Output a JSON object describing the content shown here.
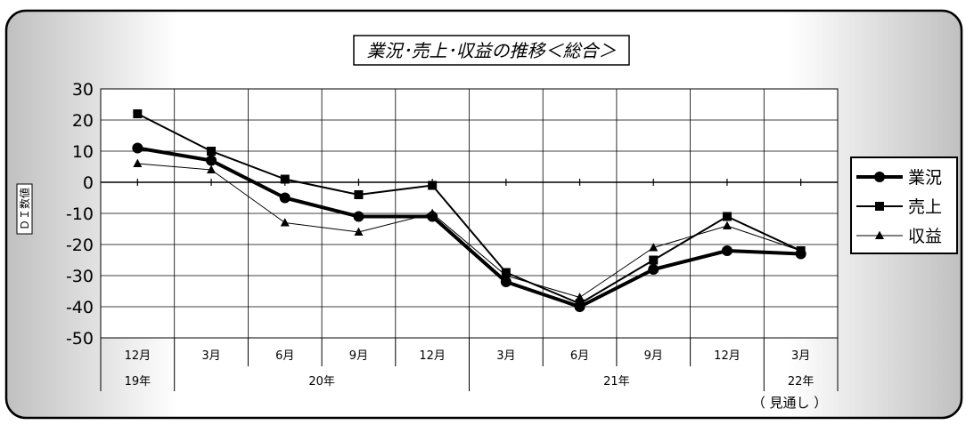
{
  "chart_data": {
    "type": "line",
    "title": "業況･売上･収益の推移＜総合＞",
    "ylabel": "ＤＩ数値",
    "ylim": [
      -50,
      30
    ],
    "yticks": [
      30,
      20,
      10,
      0,
      -10,
      -20,
      -30,
      -40,
      -50
    ],
    "categories": [
      "12月",
      "3月",
      "6月",
      "9月",
      "12月",
      "3月",
      "6月",
      "9月",
      "12月",
      "3月"
    ],
    "year_groups": [
      {
        "label": "19年",
        "from": 0,
        "to": 0
      },
      {
        "label": "20年",
        "from": 1,
        "to": 4
      },
      {
        "label": "21年",
        "from": 5,
        "to": 8
      },
      {
        "label": "22年",
        "from": 9,
        "to": 9
      }
    ],
    "forecast_note": "（ 見通し ）",
    "grid": true,
    "legend_position": "right",
    "series": [
      {
        "name": "業況",
        "marker": "circle",
        "weight": "heavy",
        "values": [
          11,
          7,
          -5,
          -11,
          -11,
          -32,
          -40,
          -28,
          -22,
          -23
        ]
      },
      {
        "name": "売上",
        "marker": "square",
        "weight": "medium",
        "values": [
          22,
          10,
          1,
          -4,
          -1,
          -29,
          -39,
          -25,
          -11,
          -22
        ]
      },
      {
        "name": "収益",
        "marker": "triangle",
        "weight": "light",
        "values": [
          6,
          4,
          -13,
          -16,
          -10,
          -30,
          -37,
          -21,
          -14,
          -22
        ]
      }
    ]
  },
  "colors": {
    "line": "#000000",
    "frame": "#000000",
    "panel_edge": "#c0c0c0",
    "panel_center": "#ffffff",
    "plot_bg": "#ffffff"
  }
}
